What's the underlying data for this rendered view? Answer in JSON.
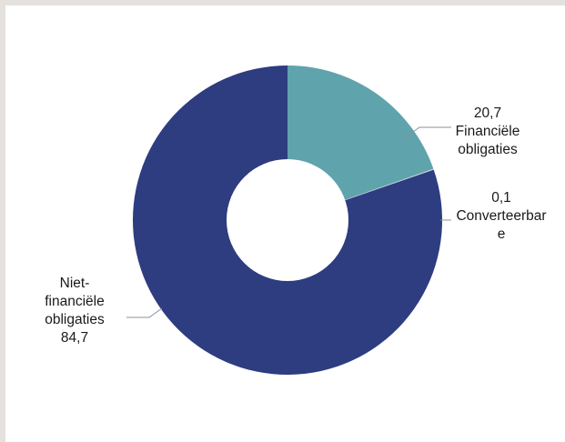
{
  "chart_data": {
    "type": "pie",
    "donut": true,
    "slices": [
      {
        "name": "Financiële obligaties",
        "value": 20.7,
        "value_text": "20,7",
        "label_lines": [
          "20,7",
          "Financiële",
          "obligaties"
        ],
        "color": "#5fa3ad"
      },
      {
        "name": "Converteerbare",
        "value": 0.1,
        "value_text": "0,1",
        "label_lines": [
          "0,1",
          "Converteerbar",
          "e"
        ],
        "color": "#c9d3d8"
      },
      {
        "name": "Niet-financiële obligaties",
        "value": 84.7,
        "value_text": "84,7",
        "label_lines": [
          "Niet-",
          "financiële",
          "obligaties",
          "84,7"
        ],
        "color": "#2e3c80"
      }
    ],
    "start_angle_deg": 90,
    "direction": "clockwise",
    "background": "#e5e2dd",
    "panel_color": "#ffffff"
  }
}
